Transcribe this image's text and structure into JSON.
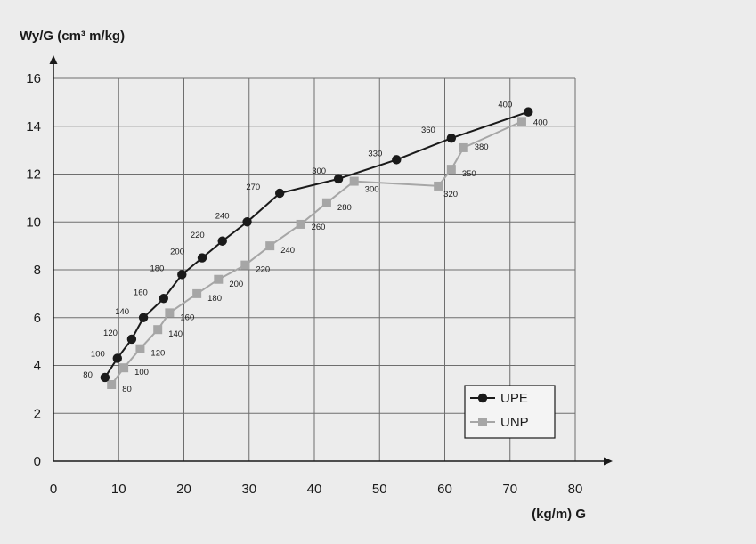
{
  "chart_data": {
    "type": "line",
    "ylabel": "Wy/G (cm³ m/kg)",
    "xlabel": "(kg/m) G",
    "xlim": [
      0,
      80
    ],
    "ylim": [
      0,
      16
    ],
    "xticks": [
      "0",
      "10",
      "20",
      "30",
      "40",
      "50",
      "60",
      "70",
      "80"
    ],
    "yticks": [
      "0",
      "2",
      "4",
      "6",
      "8",
      "10",
      "12",
      "14",
      "16"
    ],
    "grid": true,
    "legend_position": "bottom-right",
    "series": [
      {
        "name": "UPE",
        "color": "#1a1a1a",
        "marker": "circle",
        "points": [
          {
            "x": 7.9,
            "y": 3.5,
            "label": "80"
          },
          {
            "x": 9.8,
            "y": 4.3,
            "label": "100"
          },
          {
            "x": 12.0,
            "y": 5.1,
            "label": "120"
          },
          {
            "x": 13.8,
            "y": 6.0,
            "label": "140"
          },
          {
            "x": 16.9,
            "y": 6.8,
            "label": "160"
          },
          {
            "x": 19.7,
            "y": 7.8,
            "label": "180"
          },
          {
            "x": 22.8,
            "y": 8.5,
            "label": "200"
          },
          {
            "x": 25.9,
            "y": 9.2,
            "label": "220"
          },
          {
            "x": 29.7,
            "y": 10.0,
            "label": "240"
          },
          {
            "x": 34.7,
            "y": 11.2,
            "label": "270"
          },
          {
            "x": 43.7,
            "y": 11.8,
            "label": "300"
          },
          {
            "x": 52.6,
            "y": 12.6,
            "label": "330"
          },
          {
            "x": 61.0,
            "y": 13.5,
            "label": "360"
          },
          {
            "x": 72.8,
            "y": 14.6,
            "label": "400"
          }
        ]
      },
      {
        "name": "UNP",
        "color": "#a6a6a6",
        "marker": "square",
        "points": [
          {
            "x": 8.9,
            "y": 3.2,
            "label": "80"
          },
          {
            "x": 10.8,
            "y": 3.9,
            "label": "100"
          },
          {
            "x": 13.3,
            "y": 4.7,
            "label": "120"
          },
          {
            "x": 16.0,
            "y": 5.5,
            "label": "140"
          },
          {
            "x": 17.8,
            "y": 6.2,
            "label": "160"
          },
          {
            "x": 22.0,
            "y": 7.0,
            "label": "180"
          },
          {
            "x": 25.3,
            "y": 7.6,
            "label": "200"
          },
          {
            "x": 29.4,
            "y": 8.2,
            "label": "220"
          },
          {
            "x": 33.2,
            "y": 9.0,
            "label": "240"
          },
          {
            "x": 37.9,
            "y": 9.9,
            "label": "260"
          },
          {
            "x": 41.9,
            "y": 10.8,
            "label": "280"
          },
          {
            "x": 46.1,
            "y": 11.7,
            "label": "300"
          },
          {
            "x": 59.0,
            "y": 11.5,
            "label": "320"
          },
          {
            "x": 61.0,
            "y": 12.2,
            "label": "350"
          },
          {
            "x": 62.9,
            "y": 13.1,
            "label": "380"
          },
          {
            "x": 71.8,
            "y": 14.2,
            "label": "400"
          }
        ]
      }
    ]
  }
}
